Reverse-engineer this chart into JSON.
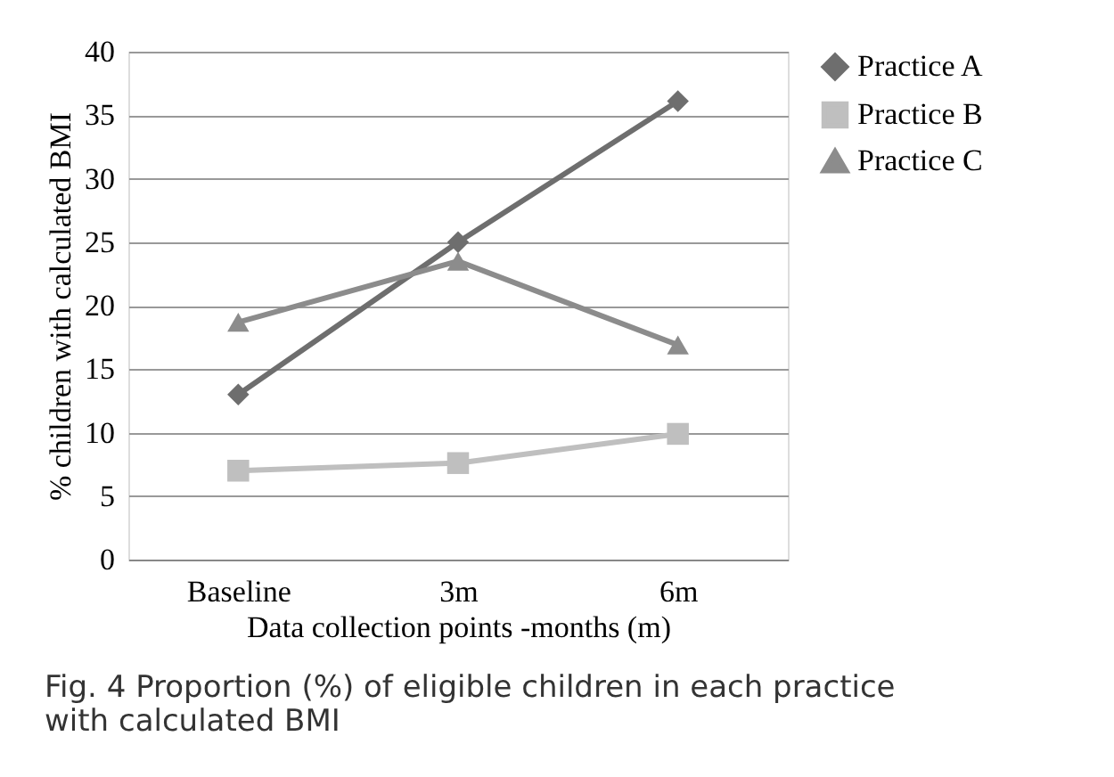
{
  "chart_data": {
    "type": "line",
    "xlabel": "Data collection points -months (m)",
    "ylabel": "% children with calculated BMI",
    "categories": [
      "Baseline",
      "3m",
      "6m"
    ],
    "series": [
      {
        "name": "Practice A",
        "color": "#6e6e6e",
        "marker": "diamond",
        "values": [
          13,
          25,
          36.1
        ]
      },
      {
        "name": "Practice B",
        "color": "#bfbfbf",
        "marker": "square",
        "values": [
          7,
          7.6,
          9.9
        ]
      },
      {
        "name": "Practice C",
        "color": "#8c8c8c",
        "marker": "triangle",
        "values": [
          18.7,
          23.5,
          16.9
        ]
      }
    ],
    "ylim": [
      0,
      40
    ],
    "yticks": [
      0,
      5,
      10,
      15,
      20,
      25,
      30,
      35,
      40
    ],
    "grid": "y",
    "legend": "right",
    "line_style": "solid",
    "annotations": [
      "Fig. 4 Proportion (%) of eligible children in each practice with calculated BMI"
    ]
  }
}
